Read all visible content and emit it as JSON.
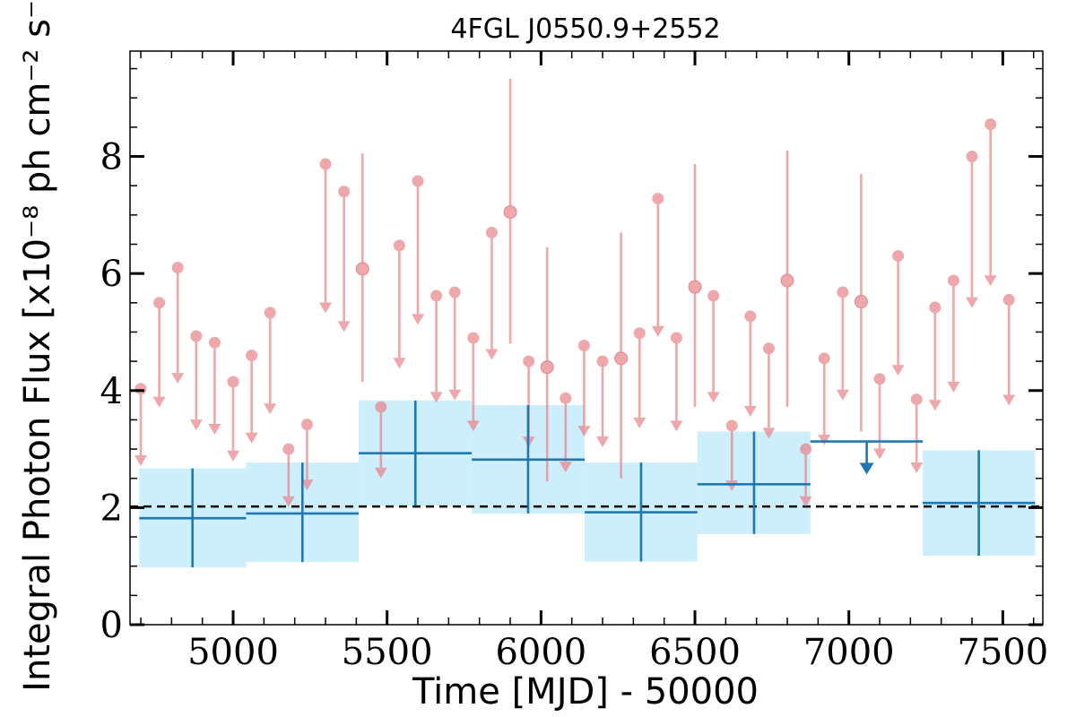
{
  "chart_data": {
    "type": "scatter",
    "title": "4FGL J0550.9+2552",
    "xlabel": "Time [MJD] - 50000",
    "ylabel": "Integral Photon Flux [x10⁻⁸ ph cm⁻² s⁻¹]",
    "xlim": [
      4665,
      7630
    ],
    "ylim": [
      0,
      9.8
    ],
    "x_ticks": [
      5000,
      5500,
      6000,
      6500,
      7000,
      7500
    ],
    "y_ticks": [
      0,
      2,
      4,
      6,
      8
    ],
    "grid": false,
    "colors": {
      "short_bins": "#e8868c",
      "long_bins": "#1f77b4",
      "long_bins_band": "#cdeefb",
      "average_line": "#000000"
    },
    "average_flux": 2.02,
    "short_bins_upper_limits": [
      {
        "x": 4700,
        "y": 4.03
      },
      {
        "x": 4760,
        "y": 5.5
      },
      {
        "x": 4820,
        "y": 6.1
      },
      {
        "x": 4880,
        "y": 4.93
      },
      {
        "x": 4940,
        "y": 4.82
      },
      {
        "x": 5000,
        "y": 4.15
      },
      {
        "x": 5060,
        "y": 4.6
      },
      {
        "x": 5120,
        "y": 5.33
      },
      {
        "x": 5180,
        "y": 3.0
      },
      {
        "x": 5240,
        "y": 3.42
      },
      {
        "x": 5300,
        "y": 7.87
      },
      {
        "x": 5360,
        "y": 7.4
      },
      {
        "x": 5480,
        "y": 3.72
      },
      {
        "x": 5540,
        "y": 6.48
      },
      {
        "x": 5600,
        "y": 7.58
      },
      {
        "x": 5660,
        "y": 5.62
      },
      {
        "x": 5720,
        "y": 5.68
      },
      {
        "x": 5780,
        "y": 4.9
      },
      {
        "x": 5840,
        "y": 6.7
      },
      {
        "x": 5960,
        "y": 4.5
      },
      {
        "x": 6080,
        "y": 3.87
      },
      {
        "x": 6140,
        "y": 4.77
      },
      {
        "x": 6200,
        "y": 4.5
      },
      {
        "x": 6320,
        "y": 4.98
      },
      {
        "x": 6380,
        "y": 7.28
      },
      {
        "x": 6440,
        "y": 4.9
      },
      {
        "x": 6560,
        "y": 5.62
      },
      {
        "x": 6620,
        "y": 3.4
      },
      {
        "x": 6680,
        "y": 5.27
      },
      {
        "x": 6740,
        "y": 4.72
      },
      {
        "x": 6860,
        "y": 3.0
      },
      {
        "x": 6920,
        "y": 4.55
      },
      {
        "x": 6980,
        "y": 5.68
      },
      {
        "x": 7100,
        "y": 4.2
      },
      {
        "x": 7160,
        "y": 6.3
      },
      {
        "x": 7220,
        "y": 3.85
      },
      {
        "x": 7280,
        "y": 5.42
      },
      {
        "x": 7340,
        "y": 5.88
      },
      {
        "x": 7400,
        "y": 8.0
      },
      {
        "x": 7460,
        "y": 8.55
      },
      {
        "x": 7520,
        "y": 5.55
      }
    ],
    "short_bins_detections": [
      {
        "x": 5420,
        "y": 6.08,
        "ylow": 4.15,
        "yhigh": 8.05
      },
      {
        "x": 5900,
        "y": 7.05,
        "ylow": 4.8,
        "yhigh": 9.33
      },
      {
        "x": 6020,
        "y": 4.4,
        "ylow": 2.45,
        "yhigh": 6.45
      },
      {
        "x": 6260,
        "y": 4.55,
        "ylow": 2.5,
        "yhigh": 6.7
      },
      {
        "x": 6500,
        "y": 5.77,
        "ylow": 3.72,
        "yhigh": 7.87
      },
      {
        "x": 6800,
        "y": 5.88,
        "ylow": 3.72,
        "yhigh": 8.1
      },
      {
        "x": 7040,
        "y": 5.52,
        "ylow": 3.3,
        "yhigh": 7.7
      }
    ],
    "long_bins": [
      {
        "x": 4868,
        "xlow": 4695,
        "xhigh": 5042,
        "y": 1.82,
        "ylow": 0.98,
        "yhigh": 2.67
      },
      {
        "x": 5225,
        "xlow": 5042,
        "xhigh": 5408,
        "y": 1.9,
        "ylow": 1.07,
        "yhigh": 2.77
      },
      {
        "x": 5592,
        "xlow": 5408,
        "xhigh": 5775,
        "y": 2.93,
        "ylow": 2.03,
        "yhigh": 3.83
      },
      {
        "x": 5958,
        "xlow": 5775,
        "xhigh": 6142,
        "y": 2.82,
        "ylow": 1.9,
        "yhigh": 3.75
      },
      {
        "x": 6325,
        "xlow": 6142,
        "xhigh": 6508,
        "y": 1.92,
        "ylow": 1.08,
        "yhigh": 2.77
      },
      {
        "x": 6692,
        "xlow": 6508,
        "xhigh": 6875,
        "y": 2.4,
        "ylow": 1.55,
        "yhigh": 3.3
      },
      {
        "x": 7422,
        "xlow": 7240,
        "xhigh": 7605,
        "y": 2.08,
        "ylow": 1.18,
        "yhigh": 2.98
      }
    ],
    "long_bins_upper_limits": [
      {
        "x": 7058,
        "xlow": 6875,
        "xhigh": 7240,
        "y": 3.13
      }
    ]
  }
}
